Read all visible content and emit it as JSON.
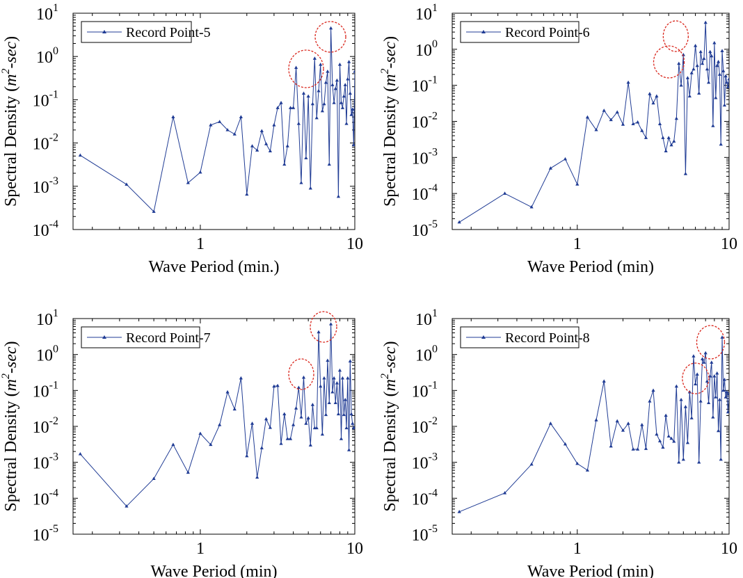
{
  "chart_data": [
    {
      "type": "line",
      "xscale": "log",
      "yscale": "log",
      "xlim": [
        0.15,
        10
      ],
      "ylim": [
        0.0001,
        10
      ],
      "x_ticks": [
        {
          "v": 1,
          "label": "1"
        },
        {
          "v": 10,
          "label": "10"
        }
      ],
      "y_ticks": [
        {
          "e": -4,
          "base": "10",
          "exp": "-4"
        },
        {
          "e": -3,
          "base": "10",
          "exp": "-3"
        },
        {
          "e": -2,
          "base": "10",
          "exp": "-2"
        },
        {
          "e": -1,
          "base": "10",
          "exp": "-1"
        },
        {
          "e": 0,
          "base": "10",
          "exp": "0"
        },
        {
          "e": 1,
          "base": "10",
          "exp": "1"
        }
      ],
      "xlabel": "Wave Period (min.)",
      "ylabel": {
        "prefix": "Spectral Density (",
        "italic": "m",
        "sup": "2",
        "italic2": "-sec",
        "suffix": ")"
      },
      "legend": {
        "label": "Record Point-5",
        "position": "top-left"
      },
      "color": "#1f3b94",
      "series": [
        {
          "name": "Record Point-5",
          "x": [
            0.167,
            0.333,
            0.5,
            0.667,
            0.833,
            1.0,
            1.167,
            1.333,
            1.5,
            1.667,
            1.833,
            2.0,
            2.167,
            2.333,
            2.5,
            2.667,
            2.833,
            3.0,
            3.167,
            3.333,
            3.5,
            3.667,
            3.833,
            4.0,
            4.167,
            4.333,
            4.5,
            4.667,
            4.833,
            5.0,
            5.167,
            5.333,
            5.5,
            5.667,
            5.833,
            6.0,
            6.167,
            6.333,
            6.5,
            6.667,
            6.833,
            7.0,
            7.167,
            7.333,
            7.5,
            7.667,
            7.833,
            8.0,
            8.167,
            8.333,
            8.5,
            8.667,
            8.833,
            9.0,
            9.167,
            9.333,
            9.5,
            9.667,
            9.833,
            10.0
          ],
          "y": [
            0.0052,
            0.0011,
            0.00026,
            0.04,
            0.0012,
            0.0021,
            0.026,
            0.031,
            0.02,
            0.016,
            0.04,
            0.00065,
            0.0085,
            0.0068,
            0.019,
            0.0095,
            0.0065,
            0.026,
            0.065,
            0.085,
            0.0032,
            0.0085,
            0.065,
            0.065,
            0.55,
            0.028,
            0.0012,
            0.14,
            0.0045,
            0.12,
            0.0009,
            0.08,
            0.9,
            0.038,
            0.16,
            0.65,
            0.055,
            0.08,
            0.25,
            0.45,
            0.0032,
            4.5,
            0.22,
            0.085,
            0.18,
            0.28,
            0.00058,
            0.65,
            0.085,
            0.065,
            0.12,
            0.22,
            0.028,
            0.3,
            0.75,
            0.14,
            0.045,
            0.06,
            0.009,
            0.45
          ]
        }
      ]
    },
    {
      "type": "line",
      "xscale": "log",
      "yscale": "log",
      "xlim": [
        0.15,
        10
      ],
      "ylim": [
        1e-05,
        10
      ],
      "x_ticks": [
        {
          "v": 1,
          "label": "1"
        },
        {
          "v": 10,
          "label": "10"
        }
      ],
      "y_ticks": [
        {
          "e": -5,
          "base": "10",
          "exp": "-5"
        },
        {
          "e": -4,
          "base": "10",
          "exp": "-4"
        },
        {
          "e": -3,
          "base": "10",
          "exp": "-3"
        },
        {
          "e": -2,
          "base": "10",
          "exp": "-2"
        },
        {
          "e": -1,
          "base": "10",
          "exp": "-1"
        },
        {
          "e": 0,
          "base": "10",
          "exp": "0"
        },
        {
          "e": 1,
          "base": "10",
          "exp": "1"
        }
      ],
      "xlabel": "Wave Period (min)",
      "ylabel": {
        "prefix": "Spectral Density (",
        "italic": "m",
        "sup": "2",
        "italic2": "-sec",
        "suffix": ")"
      },
      "legend": {
        "label": "Record Point-6",
        "position": "top-left"
      },
      "color": "#1f3b94",
      "series": [
        {
          "name": "Record Point-6",
          "x": [
            0.167,
            0.333,
            0.5,
            0.667,
            0.833,
            1.0,
            1.167,
            1.333,
            1.5,
            1.667,
            1.833,
            2.0,
            2.167,
            2.333,
            2.5,
            2.667,
            2.833,
            3.0,
            3.167,
            3.333,
            3.5,
            3.667,
            3.833,
            4.0,
            4.167,
            4.333,
            4.5,
            4.667,
            4.833,
            5.0,
            5.167,
            5.333,
            5.5,
            5.667,
            5.833,
            6.0,
            6.167,
            6.333,
            6.5,
            6.667,
            6.833,
            7.0,
            7.167,
            7.333,
            7.5,
            7.667,
            7.833,
            8.0,
            8.167,
            8.333,
            8.5,
            8.667,
            8.833,
            9.0,
            9.167,
            9.333,
            9.5,
            9.667,
            9.833,
            10.0
          ],
          "y": [
            1.6e-05,
            0.0001,
            4.2e-05,
            0.0005,
            0.0009,
            0.00018,
            0.013,
            0.0058,
            0.02,
            0.011,
            0.018,
            0.0082,
            0.12,
            0.0085,
            0.0095,
            0.0055,
            0.0035,
            0.058,
            0.032,
            0.05,
            0.0085,
            0.0035,
            0.0015,
            0.0035,
            0.0022,
            0.0028,
            0.012,
            0.4,
            0.1,
            0.7,
            0.00035,
            0.16,
            0.05,
            0.22,
            0.28,
            1.25,
            0.35,
            0.06,
            0.85,
            0.4,
            0.55,
            5.5,
            0.28,
            0.12,
            0.85,
            0.65,
            0.0075,
            1.5,
            0.045,
            0.35,
            0.45,
            0.2,
            0.0023,
            0.9,
            0.25,
            0.028,
            0.18,
            0.12,
            0.09,
            0.15
          ]
        }
      ]
    },
    {
      "type": "line",
      "xscale": "log",
      "yscale": "log",
      "xlim": [
        0.15,
        10
      ],
      "ylim": [
        1e-05,
        10
      ],
      "x_ticks": [
        {
          "v": 1,
          "label": "1"
        },
        {
          "v": 10,
          "label": "10"
        }
      ],
      "y_ticks": [
        {
          "e": -5,
          "base": "10",
          "exp": "-5"
        },
        {
          "e": -4,
          "base": "10",
          "exp": "-4"
        },
        {
          "e": -3,
          "base": "10",
          "exp": "-3"
        },
        {
          "e": -2,
          "base": "10",
          "exp": "-2"
        },
        {
          "e": -1,
          "base": "10",
          "exp": "-1"
        },
        {
          "e": 0,
          "base": "10",
          "exp": "0"
        },
        {
          "e": 1,
          "base": "10",
          "exp": "1"
        }
      ],
      "xlabel": "Wave Period (min)",
      "ylabel": {
        "prefix": "Spectral Density (",
        "italic": "m",
        "sup": "2",
        "italic2": "-sec",
        "suffix": ")"
      },
      "legend": {
        "label": "Record Point-7",
        "position": "top-left"
      },
      "color": "#1f3b94",
      "series": [
        {
          "name": "Record Point-7",
          "x": [
            0.167,
            0.333,
            0.5,
            0.667,
            0.833,
            1.0,
            1.167,
            1.333,
            1.5,
            1.667,
            1.833,
            2.0,
            2.167,
            2.333,
            2.5,
            2.667,
            2.833,
            3.0,
            3.167,
            3.333,
            3.5,
            3.667,
            3.833,
            4.0,
            4.167,
            4.333,
            4.5,
            4.667,
            4.833,
            5.0,
            5.167,
            5.333,
            5.5,
            5.667,
            5.833,
            6.0,
            6.167,
            6.333,
            6.5,
            6.667,
            6.833,
            7.0,
            7.167,
            7.333,
            7.5,
            7.667,
            7.833,
            8.0,
            8.167,
            8.333,
            8.5,
            8.667,
            8.833,
            9.0,
            9.167,
            9.333,
            9.5,
            9.667,
            9.833,
            10.0
          ],
          "y": [
            0.0017,
            6e-05,
            0.00035,
            0.0031,
            0.00052,
            0.0063,
            0.0031,
            0.011,
            0.09,
            0.03,
            0.22,
            0.0015,
            0.012,
            0.00038,
            0.0025,
            0.016,
            0.0092,
            0.13,
            0.135,
            0.0033,
            0.022,
            0.0045,
            0.0045,
            0.011,
            0.032,
            0.12,
            0.018,
            0.23,
            0.012,
            0.017,
            0.003,
            0.04,
            0.009,
            0.009,
            4.2,
            0.13,
            0.006,
            0.22,
            0.021,
            0.68,
            0.045,
            7.0,
            0.09,
            0.22,
            0.045,
            0.16,
            0.022,
            0.36,
            0.0045,
            0.22,
            0.021,
            0.055,
            0.009,
            0.22,
            0.0022,
            0.65,
            0.022,
            0.012,
            0.009,
            0.009
          ]
        }
      ]
    },
    {
      "type": "line",
      "xscale": "log",
      "yscale": "log",
      "xlim": [
        0.15,
        10
      ],
      "ylim": [
        1e-05,
        10
      ],
      "x_ticks": [
        {
          "v": 1,
          "label": "1"
        },
        {
          "v": 10,
          "label": "10"
        }
      ],
      "y_ticks": [
        {
          "e": -5,
          "base": "10",
          "exp": "-5"
        },
        {
          "e": -4,
          "base": "10",
          "exp": "-4"
        },
        {
          "e": -3,
          "base": "10",
          "exp": "-3"
        },
        {
          "e": -2,
          "base": "10",
          "exp": "-2"
        },
        {
          "e": -1,
          "base": "10",
          "exp": "-1"
        },
        {
          "e": 0,
          "base": "10",
          "exp": "0"
        },
        {
          "e": 1,
          "base": "10",
          "exp": "1"
        }
      ],
      "xlabel": "Wave Period (min)",
      "ylabel": {
        "prefix": "Spectral Density (",
        "italic": "m",
        "sup": "2",
        "italic2": "-sec",
        "suffix": ")"
      },
      "legend": {
        "label": "Record Point-8",
        "position": "top-left"
      },
      "color": "#1f3b94",
      "series": [
        {
          "name": "Record Point-8",
          "x": [
            0.167,
            0.333,
            0.5,
            0.667,
            0.833,
            1.0,
            1.167,
            1.333,
            1.5,
            1.667,
            1.833,
            2.0,
            2.167,
            2.333,
            2.5,
            2.667,
            2.833,
            3.0,
            3.167,
            3.333,
            3.5,
            3.667,
            3.833,
            4.0,
            4.167,
            4.333,
            4.5,
            4.667,
            4.833,
            5.0,
            5.167,
            5.333,
            5.5,
            5.667,
            5.833,
            6.0,
            6.167,
            6.333,
            6.5,
            6.667,
            6.833,
            7.0,
            7.167,
            7.333,
            7.5,
            7.667,
            7.833,
            8.0,
            8.167,
            8.333,
            8.5,
            8.667,
            8.833,
            9.0,
            9.167,
            9.333,
            9.5,
            9.667,
            9.833,
            10.0
          ],
          "y": [
            4.2e-05,
            0.00014,
            0.00088,
            0.012,
            0.0032,
            0.00092,
            0.0006,
            0.015,
            0.18,
            0.0028,
            0.014,
            0.0077,
            0.012,
            0.0023,
            0.0023,
            0.011,
            0.0024,
            0.05,
            0.1,
            0.006,
            0.0039,
            0.0026,
            0.02,
            0.0053,
            0.0046,
            0.0038,
            0.13,
            0.001,
            0.055,
            0.0012,
            0.035,
            0.0035,
            0.09,
            0.017,
            0.9,
            0.15,
            0.28,
            0.001,
            0.05,
            0.75,
            0.6,
            1.1,
            0.18,
            0.045,
            0.25,
            0.6,
            0.018,
            0.25,
            0.065,
            0.3,
            0.0075,
            0.055,
            0.0012,
            3.0,
            0.1,
            0.2,
            0.065,
            0.09,
            0.025,
            0.08
          ]
        }
      ]
    }
  ]
}
